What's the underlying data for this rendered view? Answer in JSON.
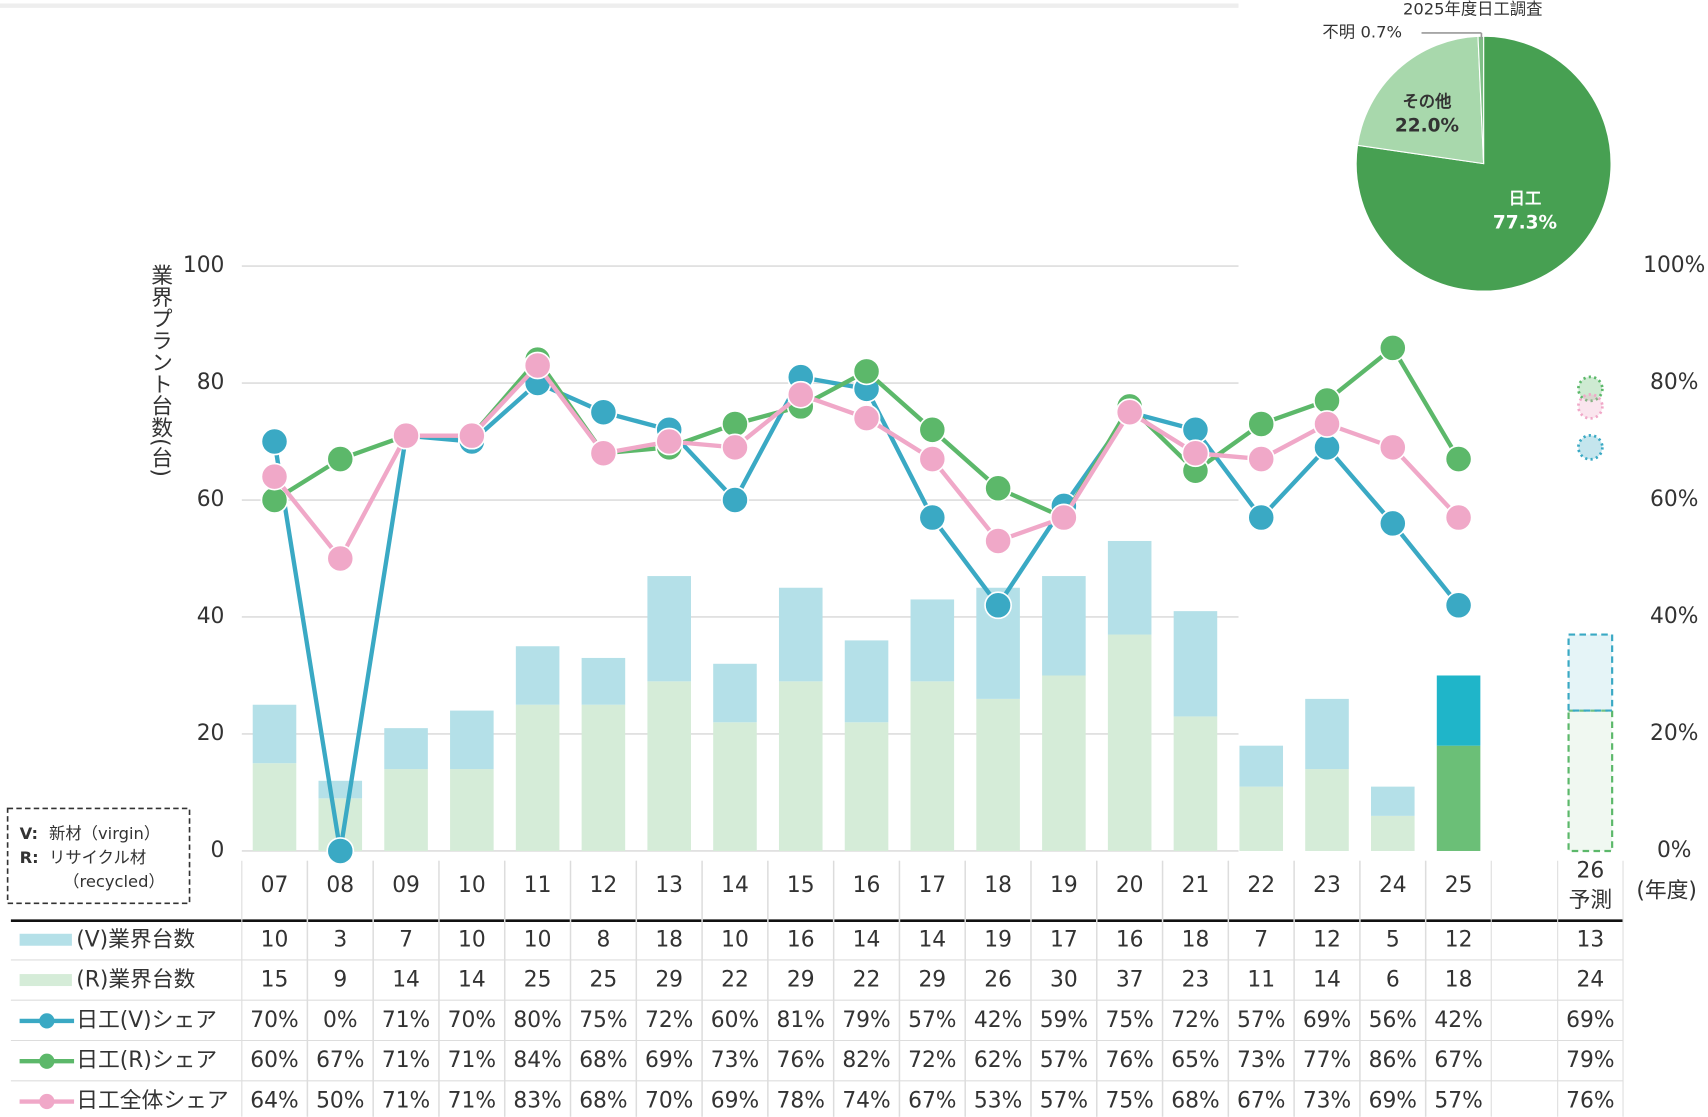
{
  "chart_data": [
    {
      "type": "bar_line",
      "y_label": "業界プラント台数(台)",
      "x_label": "(年度)",
      "categories": [
        "07",
        "08",
        "09",
        "10",
        "11",
        "12",
        "13",
        "14",
        "15",
        "16",
        "17",
        "18",
        "19",
        "20",
        "21",
        "22",
        "23",
        "24",
        "25",
        "26"
      ],
      "forecast": "26",
      "forecast_label": "予測",
      "highlight": "25",
      "ylim": [
        0,
        100
      ],
      "yticks": [
        0,
        20,
        40,
        60,
        80,
        100
      ],
      "y2lim": [
        0,
        100
      ],
      "y2ticks": [
        {
          "value": 0,
          "label": "0%"
        },
        {
          "value": 20,
          "label": "20%"
        },
        {
          "value": 40,
          "label": "40%"
        },
        {
          "value": 60,
          "label": "60%"
        },
        {
          "value": 80,
          "label": "80%"
        },
        {
          "value": 100,
          "label": "100%"
        }
      ],
      "grid": true,
      "notes": [
        {
          "key": "V:",
          "text": "新材（virgin）"
        },
        {
          "key": "R:",
          "text": "リサイクル材",
          "sub": "（recycled）"
        }
      ],
      "series": [
        {
          "name": "(V)業界台数",
          "type": "bar",
          "color": "#b4e0e8",
          "highlight_color": "#1fb5c9",
          "forecast_color": "#3aa9c4",
          "values": [
            10,
            3,
            7,
            10,
            10,
            8,
            18,
            10,
            16,
            14,
            14,
            19,
            17,
            16,
            18,
            7,
            12,
            5,
            12,
            13
          ]
        },
        {
          "name": "(R)業界台数",
          "type": "bar",
          "color": "#d5ecd8",
          "highlight_color": "#6bbf77",
          "forecast_color": "#5cb86a",
          "values": [
            15,
            9,
            14,
            14,
            25,
            25,
            29,
            22,
            29,
            22,
            29,
            26,
            30,
            37,
            23,
            11,
            14,
            6,
            18,
            24
          ]
        },
        {
          "name": "日工(V)シェア",
          "type": "line",
          "axis": "y2",
          "color": "#3aa9c4",
          "values": [
            70,
            0,
            71,
            70,
            80,
            75,
            72,
            60,
            81,
            79,
            57,
            42,
            59,
            75,
            72,
            57,
            69,
            56,
            42,
            69
          ],
          "value_labels": [
            "70%",
            "0%",
            "71%",
            "70%",
            "80%",
            "75%",
            "72%",
            "60%",
            "81%",
            "79%",
            "57%",
            "42%",
            "59%",
            "75%",
            "72%",
            "57%",
            "69%",
            "56%",
            "42%",
            "69%"
          ]
        },
        {
          "name": "日工(R)シェア",
          "type": "line",
          "axis": "y2",
          "color": "#5cb86a",
          "values": [
            60,
            67,
            71,
            71,
            84,
            68,
            69,
            73,
            76,
            82,
            72,
            62,
            57,
            76,
            65,
            73,
            77,
            86,
            67,
            79
          ],
          "value_labels": [
            "60%",
            "67%",
            "71%",
            "71%",
            "84%",
            "68%",
            "69%",
            "73%",
            "76%",
            "82%",
            "72%",
            "62%",
            "57%",
            "76%",
            "65%",
            "73%",
            "77%",
            "86%",
            "67%",
            "79%"
          ]
        },
        {
          "name": "日工全体シェア",
          "type": "line",
          "axis": "y2",
          "color": "#f0a8c8",
          "values": [
            64,
            50,
            71,
            71,
            83,
            68,
            70,
            69,
            78,
            74,
            67,
            53,
            57,
            75,
            68,
            67,
            73,
            69,
            57,
            76
          ],
          "value_labels": [
            "64%",
            "50%",
            "71%",
            "71%",
            "83%",
            "68%",
            "70%",
            "69%",
            "78%",
            "74%",
            "67%",
            "53%",
            "57%",
            "75%",
            "68%",
            "67%",
            "73%",
            "69%",
            "57%",
            "76%"
          ]
        }
      ]
    },
    {
      "type": "pie",
      "title": "2025年度日工調査",
      "categories": [
        "日工",
        "その他",
        "不明"
      ],
      "values": [
        77.3,
        22.0,
        0.7
      ],
      "value_labels": [
        "77.3%",
        "22.0%",
        "0.7%"
      ],
      "colors": [
        "#47a052",
        "#a8d8ac",
        "#7fbf86"
      ]
    }
  ]
}
